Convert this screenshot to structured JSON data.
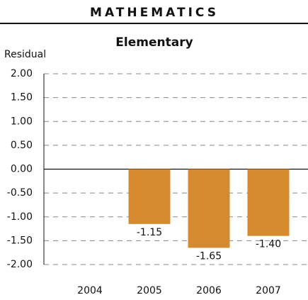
{
  "chart_data": {
    "type": "bar",
    "header": "MATHEMATICS",
    "title": "Elementary",
    "y_label": "Residual",
    "categories": [
      "2004",
      "2005",
      "2006",
      "2007"
    ],
    "values": [
      null,
      -1.15,
      -1.65,
      -1.4
    ],
    "value_labels": [
      null,
      "-1.15",
      "-1.65",
      "-1.40"
    ],
    "color": "#d68a2f",
    "ylim": [
      -2,
      2
    ],
    "yticks": [
      {
        "value": 2,
        "label": "2.00"
      },
      {
        "value": 1.5,
        "label": "1.50"
      },
      {
        "value": 1,
        "label": "1.00"
      },
      {
        "value": 0.5,
        "label": "0.50"
      },
      {
        "value": 0,
        "label": "0.00"
      },
      {
        "value": -0.5,
        "label": "-0.50"
      },
      {
        "value": -1,
        "label": "-1.00"
      },
      {
        "value": -1.5,
        "label": "-1.50"
      },
      {
        "value": -2,
        "label": "-2.00"
      }
    ],
    "grid": true
  }
}
